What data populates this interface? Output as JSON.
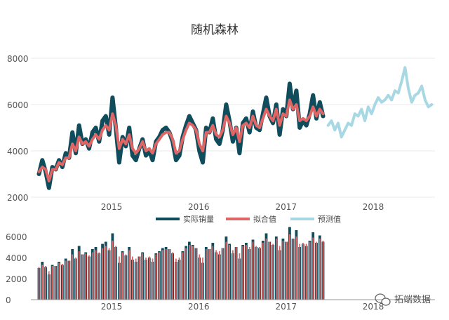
{
  "chart_data": [
    {
      "type": "line",
      "title": "随机森林",
      "xlabel": "",
      "ylabel": "",
      "ylim": [
        2000,
        8000
      ],
      "y_ticks": [
        2000,
        4000,
        6000,
        8000
      ],
      "y_tick_labels": [
        "2000",
        "4000",
        "6000",
        "8000"
      ],
      "x_ticks": [
        "2015-01-01",
        "2016-01-01",
        "2017-01-01",
        "2018-01-01"
      ],
      "x_tick_labels": [
        "2015",
        "2016",
        "2017",
        "2018"
      ],
      "grid": "horizontal",
      "legend_position": "bottom-center",
      "colors": {
        "actual": "#0f4c5c",
        "fitted": "#e06666",
        "forecast": "#a8d8e4"
      },
      "series": [
        {
          "name": "实际销量",
          "x": [
            "2014-03-03",
            "2014-03-17",
            "2014-03-31",
            "2014-04-14",
            "2014-04-28",
            "2014-05-12",
            "2014-05-26",
            "2014-06-09",
            "2014-06-23",
            "2014-07-07",
            "2014-07-21",
            "2014-08-04",
            "2014-08-18",
            "2014-09-01",
            "2014-09-15",
            "2014-09-29",
            "2014-10-13",
            "2014-10-27",
            "2014-11-10",
            "2014-11-24",
            "2014-12-08",
            "2014-12-22",
            "2015-01-05",
            "2015-01-19",
            "2015-02-02",
            "2015-02-16",
            "2015-03-02",
            "2015-03-16",
            "2015-03-30",
            "2015-04-13",
            "2015-04-27",
            "2015-05-11",
            "2015-05-25",
            "2015-06-08",
            "2015-06-22",
            "2015-07-06",
            "2015-07-20",
            "2015-08-03",
            "2015-08-17",
            "2015-08-31",
            "2015-09-14",
            "2015-09-28",
            "2015-10-12",
            "2015-10-26",
            "2015-11-09",
            "2015-11-23",
            "2015-12-07",
            "2015-12-21",
            "2016-01-04",
            "2016-01-18",
            "2016-02-01",
            "2016-02-15",
            "2016-02-29",
            "2016-03-14",
            "2016-03-28",
            "2016-04-11",
            "2016-04-25",
            "2016-05-09",
            "2016-05-23",
            "2016-06-06",
            "2016-06-20",
            "2016-07-04",
            "2016-07-18",
            "2016-08-01",
            "2016-08-15",
            "2016-08-29",
            "2016-09-12",
            "2016-09-26",
            "2016-10-10",
            "2016-10-24",
            "2016-11-07",
            "2016-11-21",
            "2016-12-05",
            "2016-12-19",
            "2017-01-02",
            "2017-01-16",
            "2017-01-30",
            "2017-02-13",
            "2017-02-27",
            "2017-03-13",
            "2017-03-27",
            "2017-04-10",
            "2017-04-24",
            "2017-05-08",
            "2017-05-22",
            "2017-06-05"
          ],
          "values": [
            3000,
            3600,
            3100,
            2400,
            3300,
            3200,
            3600,
            3300,
            3900,
            3700,
            4800,
            3900,
            5100,
            4300,
            4500,
            4100,
            4800,
            5000,
            4400,
            5300,
            5500,
            4700,
            6300,
            5000,
            3500,
            4600,
            4200,
            5000,
            3800,
            3600,
            4100,
            4500,
            3800,
            4000,
            3600,
            4400,
            4600,
            4900,
            5000,
            4800,
            4400,
            3600,
            3800,
            4600,
            5100,
            5500,
            5200,
            4900,
            4000,
            3500,
            5000,
            4800,
            5400,
            4500,
            4300,
            4900,
            6000,
            5300,
            4400,
            5000,
            3900,
            5200,
            5400,
            4800,
            5700,
            5000,
            4900,
            5600,
            6300,
            5500,
            5200,
            6000,
            4700,
            5800,
            5500,
            6900,
            5800,
            6600,
            5000,
            5300,
            5100,
            5600,
            6400,
            5400,
            6100,
            5500
          ]
        },
        {
          "name": "拟合值",
          "x": [
            "2014-03-03",
            "2014-03-17",
            "2014-03-31",
            "2014-04-14",
            "2014-04-28",
            "2014-05-12",
            "2014-05-26",
            "2014-06-09",
            "2014-06-23",
            "2014-07-07",
            "2014-07-21",
            "2014-08-04",
            "2014-08-18",
            "2014-09-01",
            "2014-09-15",
            "2014-09-29",
            "2014-10-13",
            "2014-10-27",
            "2014-11-10",
            "2014-11-24",
            "2014-12-08",
            "2014-12-22",
            "2015-01-05",
            "2015-01-19",
            "2015-02-02",
            "2015-02-16",
            "2015-03-02",
            "2015-03-16",
            "2015-03-30",
            "2015-04-13",
            "2015-04-27",
            "2015-05-11",
            "2015-05-25",
            "2015-06-08",
            "2015-06-22",
            "2015-07-06",
            "2015-07-20",
            "2015-08-03",
            "2015-08-17",
            "2015-08-31",
            "2015-09-14",
            "2015-09-28",
            "2015-10-12",
            "2015-10-26",
            "2015-11-09",
            "2015-11-23",
            "2015-12-07",
            "2015-12-21",
            "2016-01-04",
            "2016-01-18",
            "2016-02-01",
            "2016-02-15",
            "2016-02-29",
            "2016-03-14",
            "2016-03-28",
            "2016-04-11",
            "2016-04-25",
            "2016-05-09",
            "2016-05-23",
            "2016-06-06",
            "2016-06-20",
            "2016-07-04",
            "2016-07-18",
            "2016-08-01",
            "2016-08-15",
            "2016-08-29",
            "2016-09-12",
            "2016-09-26",
            "2016-10-10",
            "2016-10-24",
            "2016-11-07",
            "2016-11-21",
            "2016-12-05",
            "2016-12-19",
            "2017-01-02",
            "2017-01-16",
            "2017-01-30",
            "2017-02-13",
            "2017-02-27",
            "2017-03-13",
            "2017-03-27",
            "2017-04-10",
            "2017-04-24",
            "2017-05-08",
            "2017-05-22",
            "2017-06-05"
          ],
          "values": [
            3100,
            3300,
            3200,
            2700,
            3200,
            3200,
            3500,
            3400,
            3700,
            3700,
            4300,
            4000,
            4600,
            4300,
            4400,
            4200,
            4500,
            4700,
            4500,
            4900,
            5100,
            4900,
            5600,
            5100,
            4100,
            4500,
            4300,
            4700,
            4100,
            3900,
            4100,
            4400,
            4000,
            4100,
            3900,
            4300,
            4500,
            4700,
            4800,
            4800,
            4500,
            3900,
            4000,
            4500,
            4900,
            5200,
            5100,
            4900,
            4300,
            4000,
            4800,
            4800,
            5100,
            4700,
            4600,
            4900,
            5500,
            5200,
            4700,
            5000,
            4400,
            5100,
            5200,
            5000,
            5500,
            5100,
            5000,
            5400,
            5800,
            5500,
            5300,
            5800,
            5100,
            5600,
            5500,
            6200,
            5800,
            6000,
            5300,
            5400,
            5300,
            5500,
            5900,
            5500,
            5800,
            5600
          ]
        },
        {
          "name": "预测值",
          "x": [
            "2017-06-26",
            "2017-07-10",
            "2017-07-24",
            "2017-08-07",
            "2017-08-21",
            "2017-09-04",
            "2017-09-18",
            "2017-10-02",
            "2017-10-16",
            "2017-10-30",
            "2017-11-13",
            "2017-11-27",
            "2017-12-11",
            "2017-12-25",
            "2018-01-08",
            "2018-01-22",
            "2018-02-05",
            "2018-02-19",
            "2018-03-05",
            "2018-03-19",
            "2018-04-02",
            "2018-04-16",
            "2018-04-30",
            "2018-05-14",
            "2018-05-28",
            "2018-06-11",
            "2018-06-25",
            "2018-07-09",
            "2018-07-23",
            "2018-08-06",
            "2018-08-20",
            "2018-09-03"
          ],
          "values": [
            5100,
            5300,
            4900,
            5200,
            4600,
            4900,
            5200,
            5100,
            5600,
            5500,
            5800,
            5300,
            5900,
            5600,
            6000,
            6300,
            6100,
            6200,
            6400,
            6200,
            6600,
            6500,
            7000,
            7600,
            6700,
            6100,
            6400,
            6500,
            6800,
            6200,
            5900,
            6000
          ]
        }
      ]
    },
    {
      "type": "bar",
      "title": "",
      "ylim": [
        0,
        6000
      ],
      "y_ticks": [
        0,
        2000,
        4000,
        6000
      ],
      "y_tick_labels": [
        "0",
        "2000",
        "4000",
        "6000"
      ],
      "x_ticks": [
        "2015-01-01",
        "2016-01-01",
        "2017-01-01",
        "2018-01-01"
      ],
      "x_tick_labels": [
        "2015",
        "2016",
        "2017",
        "2018"
      ],
      "series_ref": [
        "实际销量",
        "拟合值"
      ]
    }
  ],
  "legend": {
    "items": [
      {
        "label": "实际销量",
        "color": "#0f4c5c"
      },
      {
        "label": "拟合值",
        "color": "#e06666"
      },
      {
        "label": "预测值",
        "color": "#a8d8e4"
      }
    ]
  },
  "watermark": {
    "text": "拓端数据",
    "icon": "wechat-bubble-icon"
  }
}
